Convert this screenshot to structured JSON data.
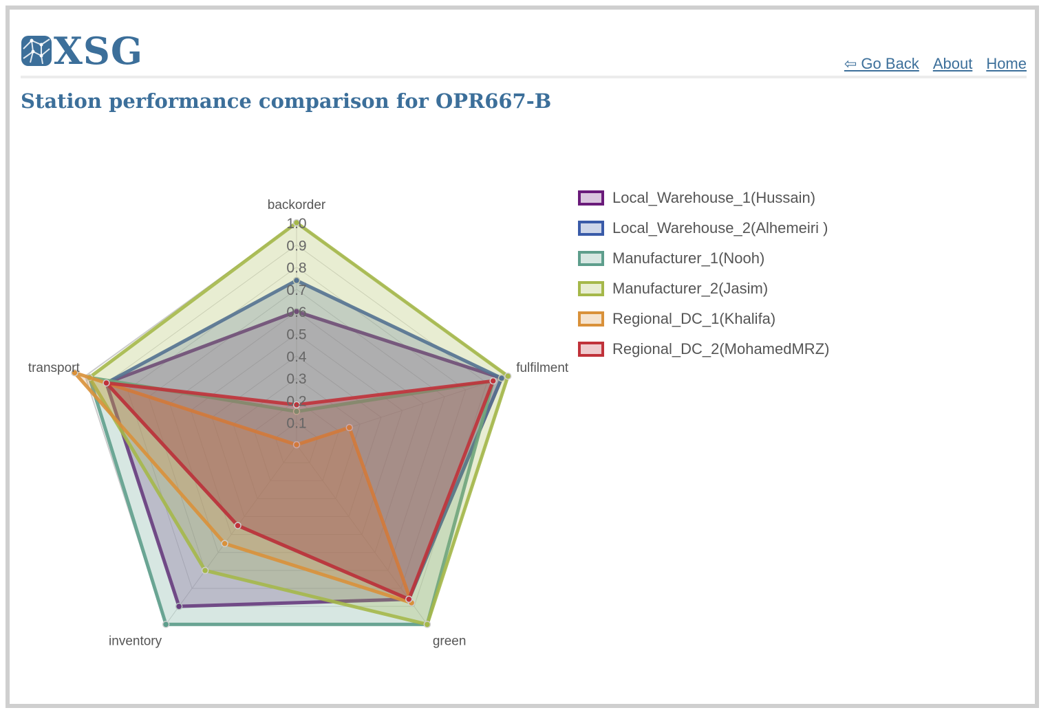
{
  "header": {
    "logo_text": "XSG",
    "nav": {
      "go_back": "⇦ Go Back",
      "about": "About",
      "home": "Home"
    }
  },
  "page_title": "Station performance comparison for OPR667-B",
  "chart_data": {
    "type": "radar",
    "axes": [
      "backorder",
      "fulfilment",
      "green",
      "inventory",
      "transport"
    ],
    "range": [
      0,
      1
    ],
    "tick_labels": [
      "0.1",
      "0.2",
      "0.3",
      "0.4",
      "0.5",
      "0.6",
      "0.7",
      "0.8",
      "0.9",
      "1.0"
    ],
    "legend_position": "right",
    "series": [
      {
        "name": "Local_Warehouse_1(Hussain)",
        "values": [
          0.6,
          0.97,
          0.86,
          0.9,
          0.9
        ],
        "color": "#6a1b7a"
      },
      {
        "name": "Local_Warehouse_2(Alhemeiri )",
        "values": [
          0.74,
          0.97,
          0.86,
          0.45,
          0.9
        ],
        "color": "#3a5ba8"
      },
      {
        "name": "Manufacturer_1(Nooh)",
        "values": [
          0.15,
          0.93,
          1.0,
          1.0,
          0.98
        ],
        "color": "#5e9e8c"
      },
      {
        "name": "Manufacturer_2(Jasim)",
        "values": [
          1.0,
          1.0,
          1.0,
          0.7,
          0.98
        ],
        "color": "#a5b84a"
      },
      {
        "name": "Regional_DC_1(Khalifa)",
        "values": [
          0.0,
          0.25,
          0.88,
          0.55,
          1.05
        ],
        "color": "#d9913a"
      },
      {
        "name": "Regional_DC_2(MohamedMRZ)",
        "values": [
          0.18,
          0.93,
          0.86,
          0.45,
          0.9
        ],
        "color": "#c0323a"
      }
    ]
  }
}
